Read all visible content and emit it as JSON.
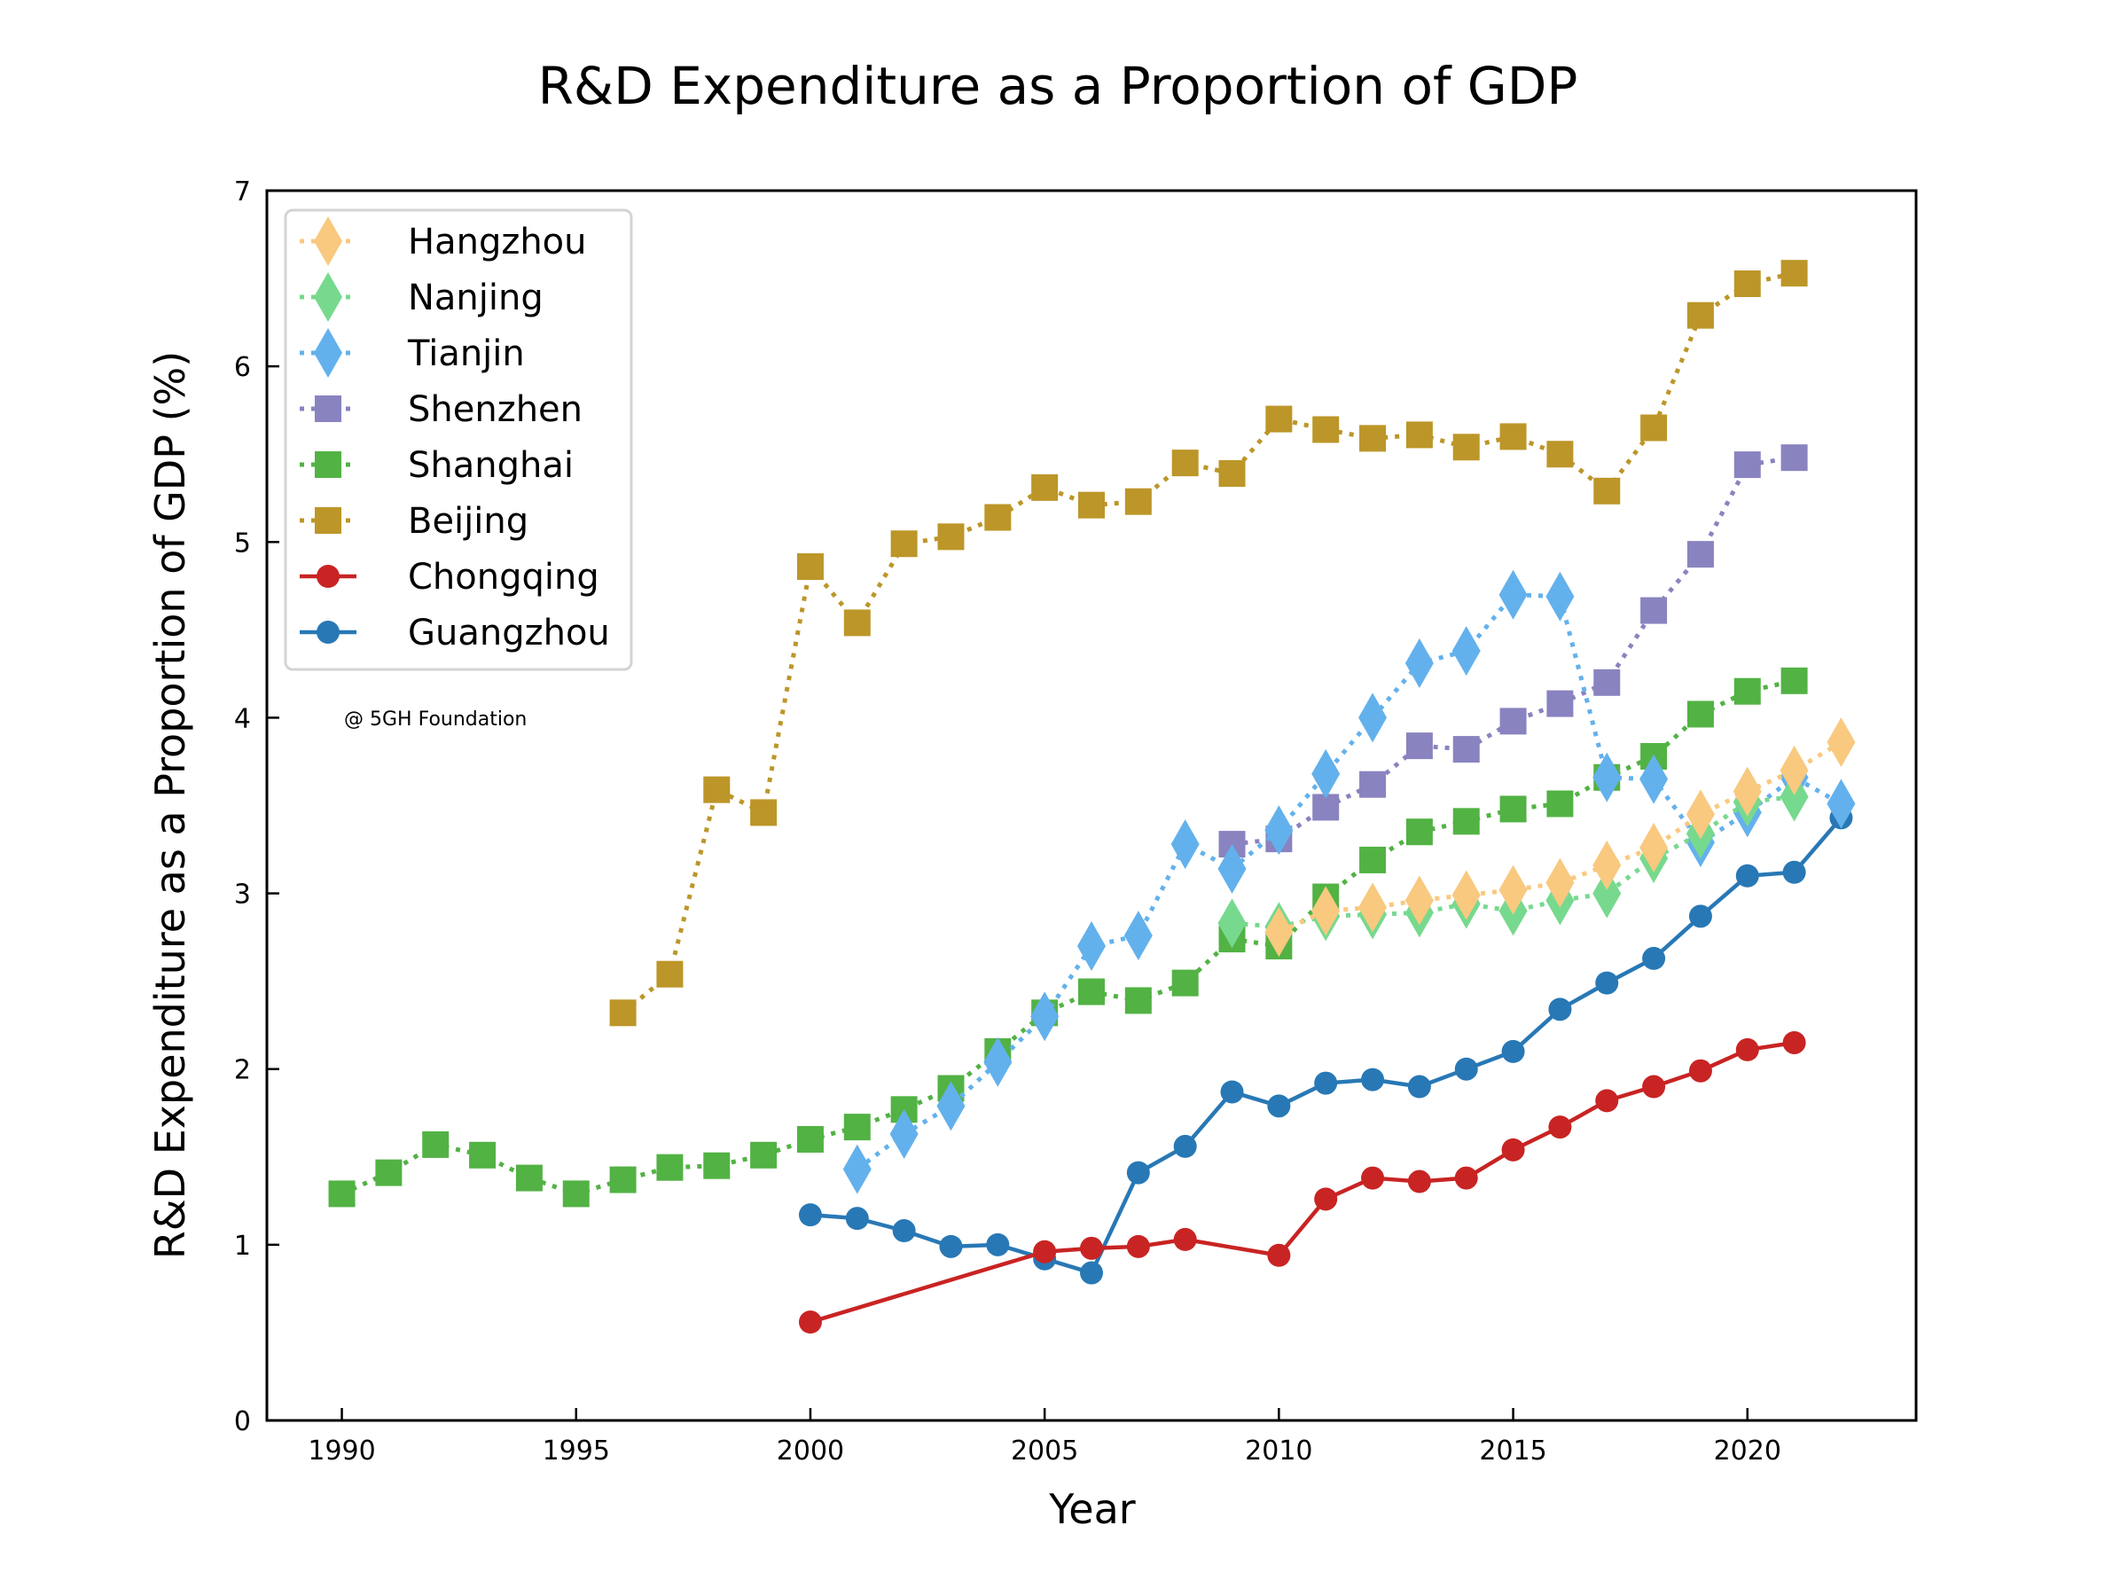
{
  "chart_data": {
    "type": "line",
    "title": "R&D Expenditure as a Proportion of GDP",
    "xlabel": "Year",
    "ylabel": "R&D Expenditure as a Proportion of GDP (%)",
    "xlim": [
      1988.4,
      2023.6
    ],
    "ylim": [
      0,
      7
    ],
    "xticks": [
      1990,
      1995,
      2000,
      2005,
      2010,
      2015,
      2020
    ],
    "yticks": [
      0,
      1,
      2,
      3,
      4,
      5,
      6,
      7
    ],
    "grid": false,
    "legend_position": "top-left",
    "annotation": "@ 5GH Foundation",
    "series": [
      {
        "name": "Hangzhou",
        "color": "#f8c97f",
        "linestyle": "dotted",
        "marker": "diamond",
        "x": [
          2010,
          2011,
          2012,
          2013,
          2014,
          2015,
          2016,
          2017,
          2018,
          2019,
          2020,
          2021,
          2022
        ],
        "y": [
          2.78,
          2.9,
          2.92,
          2.96,
          2.99,
          3.02,
          3.06,
          3.16,
          3.26,
          3.45,
          3.58,
          3.7,
          3.86
        ]
      },
      {
        "name": "Nanjing",
        "color": "#77d98e",
        "linestyle": "dotted",
        "marker": "diamond",
        "x": [
          2009,
          2010,
          2011,
          2012,
          2013,
          2014,
          2015,
          2016,
          2017,
          2018,
          2019,
          2020,
          2021
        ],
        "y": [
          2.83,
          2.81,
          2.87,
          2.88,
          2.89,
          2.94,
          2.9,
          2.96,
          3.0,
          3.2,
          3.34,
          3.52,
          3.55
        ]
      },
      {
        "name": "Tianjin",
        "color": "#63b1ec",
        "linestyle": "dotted",
        "marker": "diamond",
        "x": [
          2001,
          2002,
          2003,
          2004,
          2005,
          2006,
          2007,
          2008,
          2009,
          2010,
          2011,
          2012,
          2013,
          2014,
          2015,
          2016,
          2017,
          2018,
          2019,
          2020,
          2021,
          2022
        ],
        "y": [
          1.43,
          1.63,
          1.79,
          2.04,
          2.3,
          2.7,
          2.76,
          3.28,
          3.14,
          3.36,
          3.68,
          4.0,
          4.31,
          4.38,
          4.7,
          4.69,
          3.66,
          3.65,
          3.29,
          3.46,
          3.66,
          3.51
        ]
      },
      {
        "name": "Shenzhen",
        "color": "#8983c0",
        "linestyle": "dotted",
        "marker": "square",
        "x": [
          2009,
          2010,
          2011,
          2012,
          2013,
          2014,
          2015,
          2016,
          2017,
          2018,
          2019,
          2020,
          2021
        ],
        "y": [
          3.28,
          3.31,
          3.49,
          3.62,
          3.84,
          3.82,
          3.98,
          4.08,
          4.2,
          4.61,
          4.93,
          5.44,
          5.48
        ]
      },
      {
        "name": "Shanghai",
        "color": "#52b244",
        "linestyle": "dotted",
        "marker": "square",
        "x": [
          1990,
          1991,
          1992,
          1993,
          1994,
          1995,
          1996,
          1997,
          1998,
          1999,
          2000,
          2001,
          2002,
          2003,
          2004,
          2005,
          2006,
          2007,
          2008,
          2009,
          2010,
          2011,
          2012,
          2013,
          2014,
          2015,
          2016,
          2017,
          2018,
          2019,
          2020,
          2021
        ],
        "y": [
          1.29,
          1.41,
          1.57,
          1.51,
          1.38,
          1.29,
          1.37,
          1.44,
          1.45,
          1.51,
          1.6,
          1.67,
          1.77,
          1.89,
          2.1,
          2.32,
          2.44,
          2.39,
          2.49,
          2.74,
          2.7,
          2.98,
          3.19,
          3.35,
          3.41,
          3.48,
          3.51,
          3.66,
          3.78,
          4.02,
          4.15,
          4.21
        ]
      },
      {
        "name": "Beijing",
        "color": "#bc9628",
        "linestyle": "dotted",
        "marker": "square",
        "x": [
          1996,
          1997,
          1998,
          1999,
          2000,
          2001,
          2002,
          2003,
          2004,
          2005,
          2006,
          2007,
          2008,
          2009,
          2010,
          2011,
          2012,
          2013,
          2014,
          2015,
          2016,
          2017,
          2018,
          2019,
          2020,
          2021
        ],
        "y": [
          2.32,
          2.54,
          3.59,
          3.46,
          4.86,
          4.54,
          4.99,
          5.03,
          5.14,
          5.31,
          5.21,
          5.23,
          5.45,
          5.39,
          5.7,
          5.64,
          5.59,
          5.61,
          5.54,
          5.6,
          5.5,
          5.29,
          5.65,
          6.29,
          6.47,
          6.53
        ]
      },
      {
        "name": "Chongqing",
        "color": "#c82423",
        "linestyle": "solid",
        "marker": "circle",
        "x": [
          2000,
          2005,
          2006,
          2007,
          2008,
          2010,
          2011,
          2012,
          2013,
          2014,
          2015,
          2016,
          2017,
          2018,
          2019,
          2020,
          2021
        ],
        "y": [
          0.56,
          0.96,
          0.98,
          0.99,
          1.03,
          0.94,
          1.26,
          1.38,
          1.36,
          1.38,
          1.54,
          1.67,
          1.82,
          1.9,
          1.99,
          2.11,
          2.15
        ]
      },
      {
        "name": "Guangzhou",
        "color": "#2878b5",
        "linestyle": "solid",
        "marker": "circle",
        "x": [
          2000,
          2001,
          2002,
          2003,
          2004,
          2005,
          2006,
          2007,
          2008,
          2009,
          2010,
          2011,
          2012,
          2013,
          2014,
          2015,
          2016,
          2017,
          2018,
          2019,
          2020,
          2021,
          2022
        ],
        "y": [
          1.17,
          1.15,
          1.08,
          0.99,
          1.0,
          0.92,
          0.84,
          1.41,
          1.56,
          1.87,
          1.79,
          1.92,
          1.94,
          1.9,
          2.0,
          2.1,
          2.34,
          2.49,
          2.63,
          2.87,
          3.1,
          3.12,
          3.43
        ]
      }
    ]
  }
}
